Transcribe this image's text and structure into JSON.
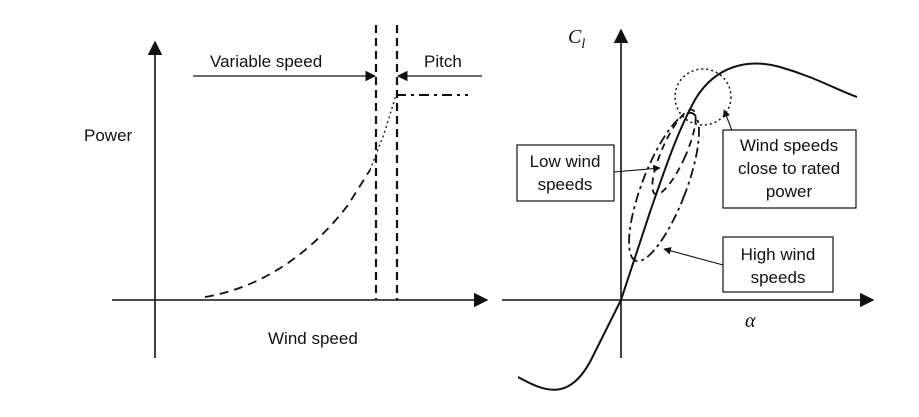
{
  "left_panel": {
    "y_axis_label": "Power",
    "x_axis_label": "Wind speed",
    "region_variable": "Variable speed",
    "region_pitch": "Pitch"
  },
  "right_panel": {
    "y_axis_symbol": "C",
    "y_axis_subscript": "l",
    "x_axis_symbol": "α",
    "callout_low": [
      "Low wind",
      "speeds"
    ],
    "callout_high": [
      "High wind",
      "speeds"
    ],
    "callout_rated": [
      "Wind speeds",
      "close to rated",
      "power"
    ]
  }
}
